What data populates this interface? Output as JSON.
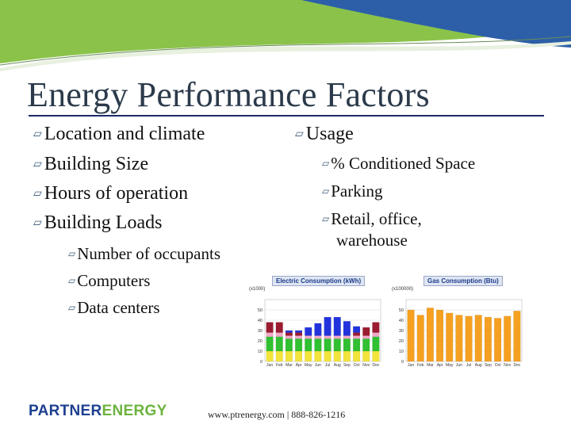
{
  "slide": {
    "title": "Energy Performance Factors",
    "left_bullets": [
      "Location and climate",
      "Building Size",
      "Hours of operation",
      "Building Loads"
    ],
    "left_sub_bullets": [
      "Number of occupants",
      "Computers",
      "Data centers"
    ],
    "right_bullet": "Usage",
    "right_sub_bullets": [
      "% Conditioned Space",
      "Parking",
      "Retail, office,"
    ],
    "right_sub_continuation": "warehouse",
    "footer": "www.ptrenergy.com | 888-826-1216",
    "logo": {
      "part1": "PARTNER",
      "part2": "ENERGY"
    },
    "colors": {
      "title": "#2b3a4a",
      "title_rule": "#1b2a6a",
      "logo_blue": "#1d3f8f",
      "logo_green": "#6cb33f",
      "header_blue": "#2d5fa8",
      "header_green": "#8bc34a"
    }
  },
  "chart_data": [
    {
      "type": "bar",
      "stacked": true,
      "title": "Electric Consumption (kWh)",
      "unit_label": "(x1000)",
      "categories": [
        "Jan",
        "Feb",
        "Mar",
        "Apr",
        "May",
        "Jun",
        "Jul",
        "Aug",
        "Sep",
        "Oct",
        "Nov",
        "Dec"
      ],
      "ylim": [
        0,
        60
      ],
      "yticks": [
        0,
        10,
        20,
        30,
        40,
        50
      ],
      "series": [
        {
          "color": "#f2e43a",
          "values": [
            10,
            10,
            10,
            10,
            10,
            10,
            10,
            10,
            10,
            10,
            10,
            10
          ]
        },
        {
          "color": "#30c032",
          "values": [
            14,
            14,
            12,
            12,
            12,
            12,
            12,
            12,
            12,
            12,
            12,
            14
          ]
        },
        {
          "color": "#f0a8c8",
          "values": [
            4,
            4,
            3,
            3,
            3,
            3,
            3,
            3,
            3,
            3,
            3,
            4
          ]
        },
        {
          "color": "#9b1b30",
          "values": [
            10,
            10,
            3,
            3,
            0,
            0,
            0,
            0,
            0,
            3,
            8,
            10
          ]
        },
        {
          "color": "#2233dd",
          "values": [
            0,
            0,
            2,
            2,
            8,
            12,
            18,
            18,
            14,
            6,
            0,
            0
          ]
        }
      ],
      "grid": true
    },
    {
      "type": "bar",
      "title": "Gas Consumption (Btu)",
      "unit_label": "(x100000)",
      "categories": [
        "Jan",
        "Feb",
        "Mar",
        "Apr",
        "May",
        "Jun",
        "Jul",
        "Aug",
        "Sep",
        "Oct",
        "Nov",
        "Dec"
      ],
      "ylim": [
        0,
        60
      ],
      "yticks": [
        0,
        10,
        20,
        30,
        40,
        50
      ],
      "series": [
        {
          "color": "#f5a020",
          "values": [
            50,
            45,
            52,
            50,
            47,
            45,
            44,
            45,
            43,
            42,
            44,
            49
          ]
        }
      ],
      "grid": true
    }
  ]
}
